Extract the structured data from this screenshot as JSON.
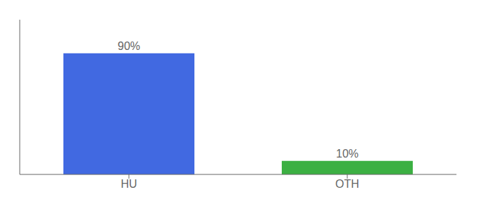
{
  "chart_data": {
    "type": "bar",
    "categories": [
      "HU",
      "OTH"
    ],
    "values": [
      90,
      10
    ],
    "value_labels": [
      "90%",
      "10%"
    ],
    "colors": [
      "#4169e1",
      "#3cb043"
    ],
    "ylim": [
      0,
      115
    ],
    "data_labels": true,
    "tick_labels": "x",
    "grid": false
  }
}
